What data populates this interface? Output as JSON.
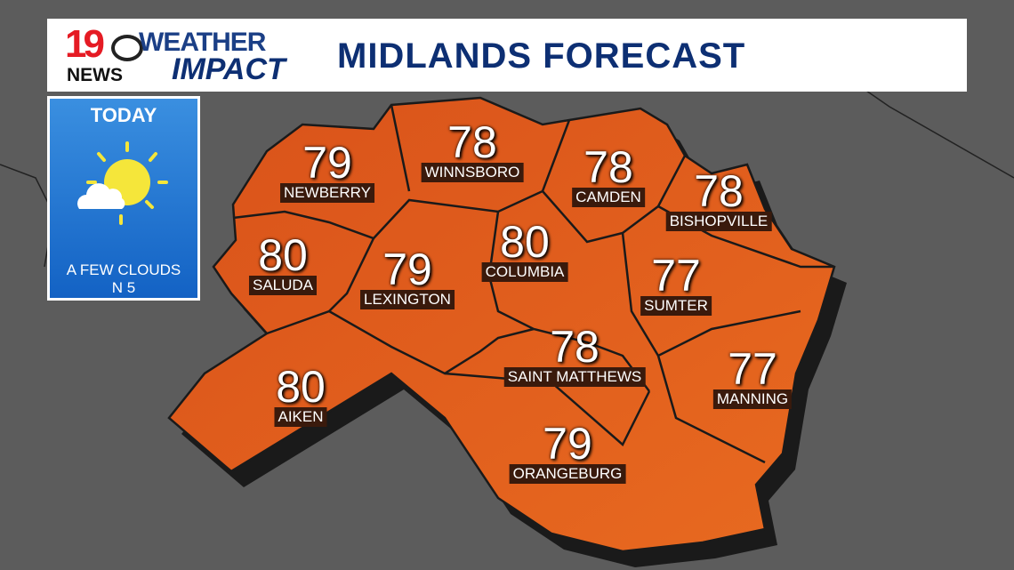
{
  "header": {
    "logo": "19 NEWS CBS WEATHER IMPACT",
    "logo_parts": {
      "number": "19",
      "news": "NEWS",
      "weather": "WEATHER",
      "impact": "IMPACT"
    },
    "title": "MIDLANDS FORECAST"
  },
  "today": {
    "label": "TODAY",
    "icon": "partly-sunny-icon",
    "condition": "A FEW CLOUDS",
    "wind": "N 5"
  },
  "colors": {
    "map_fill": "#e0561a",
    "header_text": "#0d2f73",
    "today_bg": "#2a7ad6",
    "label_bg": "#3a1a0c"
  },
  "cities": [
    {
      "name": "NEWBERRY",
      "temp": "79"
    },
    {
      "name": "WINNSBORO",
      "temp": "78"
    },
    {
      "name": "CAMDEN",
      "temp": "78"
    },
    {
      "name": "BISHOPVILLE",
      "temp": "78"
    },
    {
      "name": "SALUDA",
      "temp": "80"
    },
    {
      "name": "LEXINGTON",
      "temp": "79"
    },
    {
      "name": "COLUMBIA",
      "temp": "80"
    },
    {
      "name": "SUMTER",
      "temp": "77"
    },
    {
      "name": "SAINT MATTHEWS",
      "temp": "78"
    },
    {
      "name": "MANNING",
      "temp": "77"
    },
    {
      "name": "AIKEN",
      "temp": "80"
    },
    {
      "name": "ORANGEBURG",
      "temp": "79"
    }
  ]
}
